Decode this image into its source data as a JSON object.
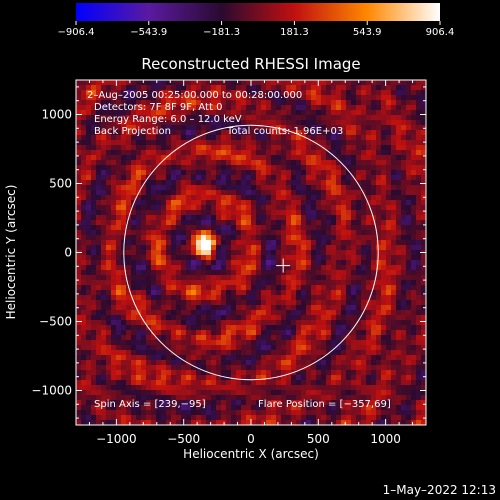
{
  "chart_data": {
    "type": "heatmap",
    "title": "Reconstructed RHESSI Image",
    "xlabel": "Heliocentric X (arcsec)",
    "ylabel": "Heliocentric Y (arcsec)",
    "xlim": [
      -1300,
      1300
    ],
    "ylim": [
      -1250,
      1250
    ],
    "xticks": [
      {
        "value": -1000,
        "label": "−1000"
      },
      {
        "value": -500,
        "label": "−500"
      },
      {
        "value": 0,
        "label": "0"
      },
      {
        "value": 500,
        "label": "500"
      },
      {
        "value": 1000,
        "label": "1000"
      }
    ],
    "yticks": [
      {
        "value": 1000,
        "label": "1000"
      },
      {
        "value": 500,
        "label": "500"
      },
      {
        "value": 0,
        "label": "0"
      },
      {
        "value": -500,
        "label": "−500"
      },
      {
        "value": -1000,
        "label": "−1000"
      }
    ],
    "colorbar": {
      "min": -906.4,
      "max": 906.4,
      "ticks": [
        {
          "value": -906.4,
          "label": "−906.4"
        },
        {
          "value": -543.9,
          "label": "−543.9"
        },
        {
          "value": -181.3,
          "label": "−181.3"
        },
        {
          "value": 181.3,
          "label": "181.3"
        },
        {
          "value": 543.9,
          "label": "543.9"
        },
        {
          "value": 906.4,
          "label": "906.4"
        }
      ],
      "colors": [
        "#0000ff",
        "#5a1aa0",
        "#2a0a30",
        "#c01010",
        "#ff8800",
        "#ffffff"
      ]
    },
    "annotations": {
      "time_range": "2–Aug–2005 00:25:00.000 to 00:28:00.000",
      "detectors": "Detectors: 7F 8F 9F, Att 0",
      "energy": "Energy Range: 6.0 – 12.0 keV",
      "method": "Back Projection",
      "counts": "Total counts: 1.96E+03",
      "spin_axis": "Spin Axis = [239,−95]",
      "flare_position_text": "Flare Position = [−357,69]"
    },
    "flare_position": [
      -357,
      69
    ],
    "source_peak": {
      "x": -350,
      "y": 60,
      "value": 906.4
    },
    "solar_limb_radius": 945,
    "cross_marker": [
      239,
      -95
    ]
  },
  "footer": {
    "timestamp": "1–May–2022 12:13"
  }
}
